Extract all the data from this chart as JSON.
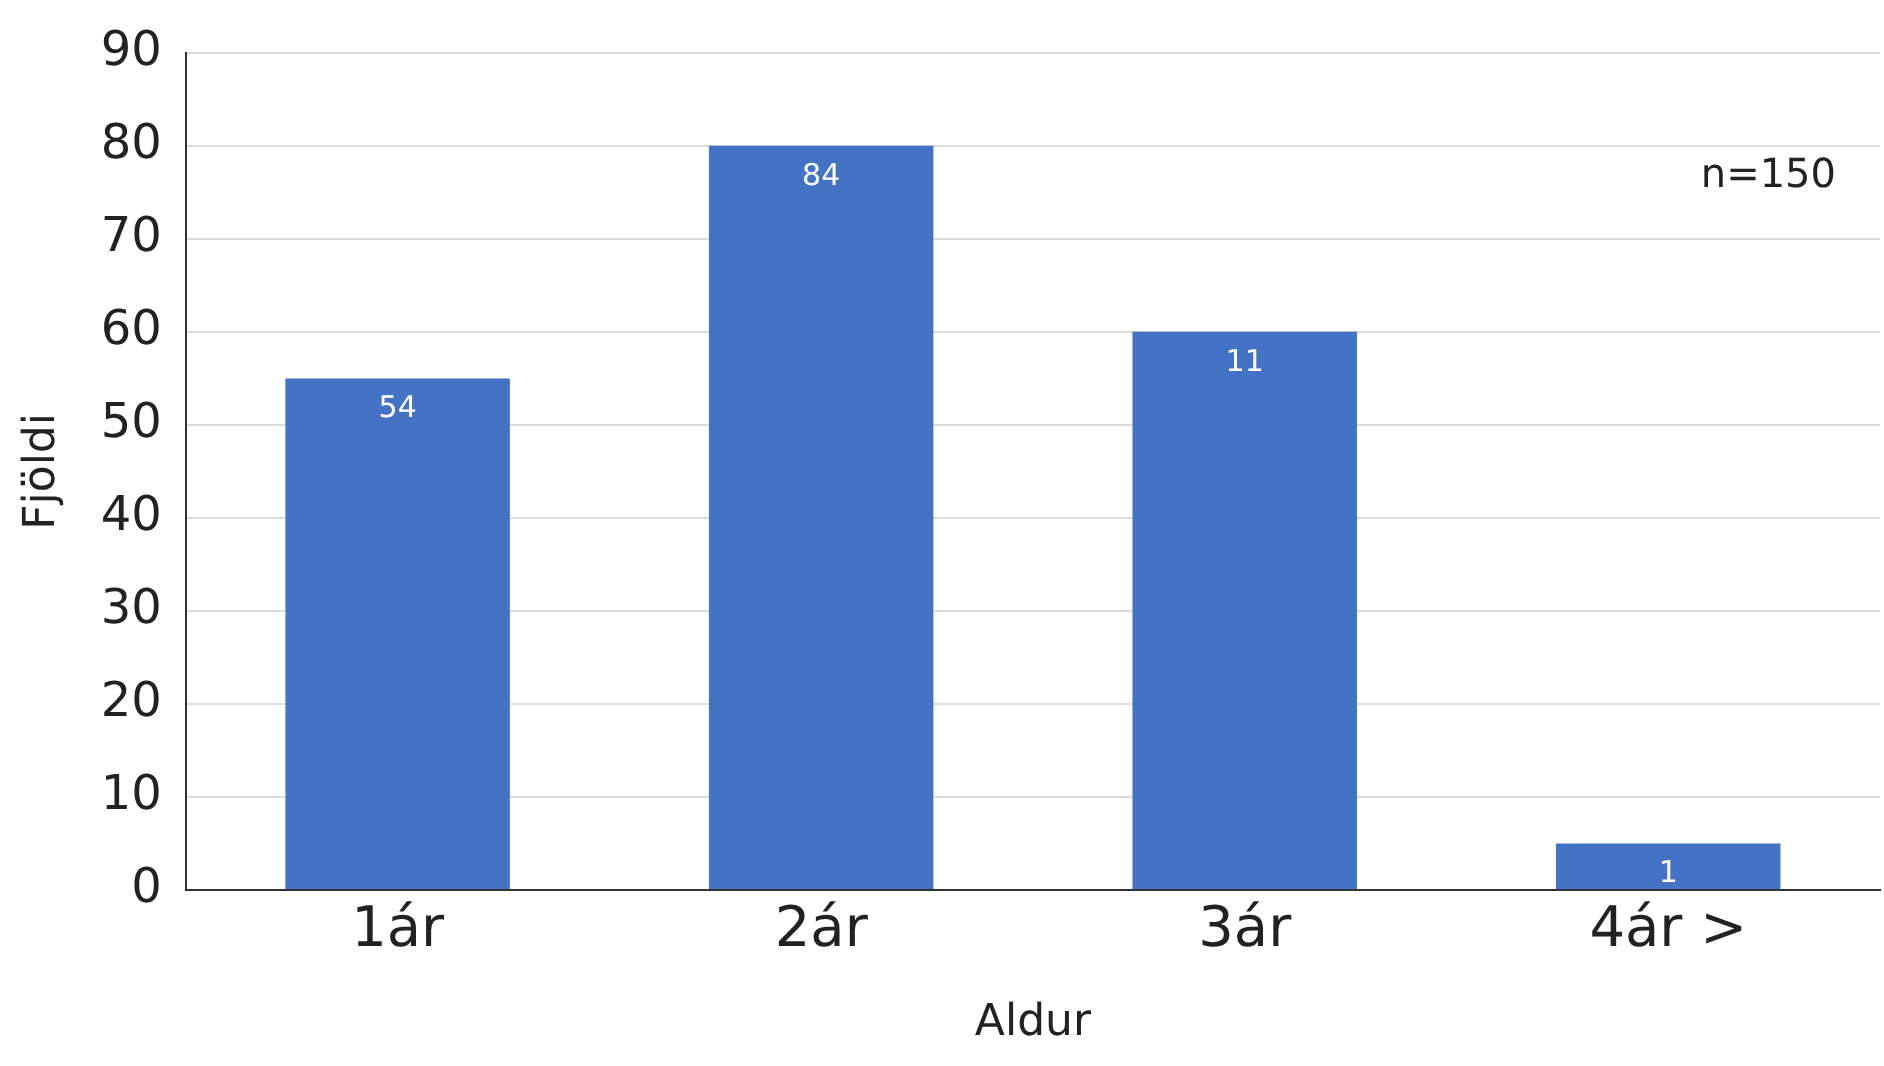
{
  "chart_data": {
    "type": "bar",
    "xlabel": "Aldur",
    "ylabel": "Fjöldi",
    "categories": [
      "1ár",
      "2ár",
      "3ár",
      "4ár >"
    ],
    "values": [
      55,
      80,
      60,
      5
    ],
    "color": "#4472c4",
    "ylim": [
      0,
      90
    ],
    "yticks": [
      0,
      10,
      20,
      30,
      40,
      50,
      60,
      70,
      80,
      90
    ],
    "grid": "y",
    "legend": false,
    "annotations": [
      "n=150",
      {
        "text": "54",
        "x": "1ár",
        "y": 55
      },
      {
        "text": "84",
        "x": "2ár",
        "y": 80
      },
      {
        "text": "11",
        "x": "3ár",
        "y": 60
      },
      {
        "text": "1",
        "x": "4ár >",
        "y": 5
      }
    ]
  }
}
